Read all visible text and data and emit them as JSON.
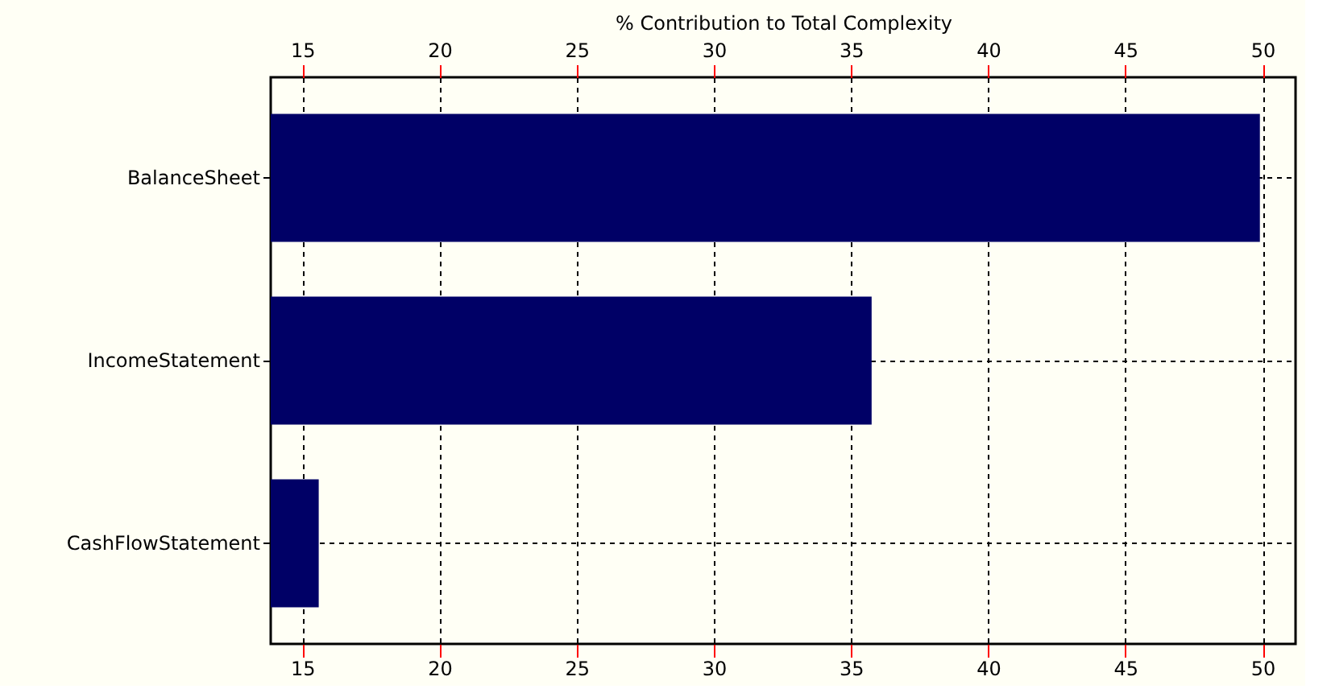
{
  "chart_data": {
    "type": "bar",
    "orientation": "horizontal",
    "x2label": "% Contribution to Total Complexity",
    "categories": [
      "BalanceSheet",
      "IncomeStatement",
      "CashFlowStatement"
    ],
    "values": [
      49.9,
      35.75,
      15.6
    ],
    "color": "#000066",
    "xlim": [
      13.85,
      51.2
    ],
    "xticks": [
      15,
      20,
      25,
      30,
      35,
      40,
      45,
      50
    ],
    "x2lim": [
      13.85,
      51.2
    ],
    "x2ticks": [
      15,
      20,
      25,
      30,
      35,
      40,
      45,
      50
    ],
    "grid": true
  }
}
